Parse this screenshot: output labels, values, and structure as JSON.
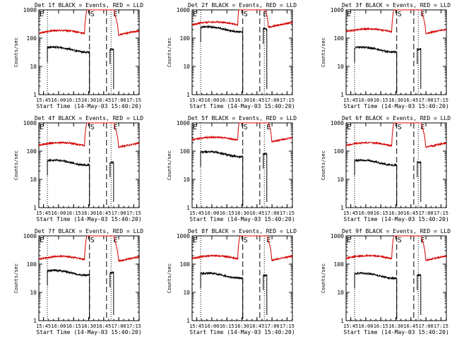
{
  "colors": {
    "events": "#000000",
    "lld": "#d40000",
    "axes": "#000000",
    "background": "#ffffff"
  },
  "common": {
    "ylabel": "Counts/sec",
    "xlabel": "Start Time (14-May-03 15:40:20)",
    "xticks": [
      "15:45",
      "16:00",
      "16:15",
      "16:30",
      "16:45",
      "17:00",
      "17:15"
    ],
    "yticks": [
      "1",
      "10",
      "100",
      "1000"
    ],
    "marker_S": "S",
    "marker_E": "E"
  },
  "chart_data": [
    {
      "type": "line",
      "title": "Det 1f BLACK = Events, RED = LLD",
      "xlabel": "Start Time (14-May-03 15:40:20)",
      "ylabel": "Counts/sec",
      "yscale": "log",
      "ylim": [
        1,
        1000
      ],
      "xlim_min_after_start": [
        0,
        100
      ],
      "dotted_lines_min": [
        8.5,
        72
      ],
      "dashed_lines_min": [
        50.5,
        67.5
      ],
      "S_min": 50.5,
      "E_min": 73.5,
      "series": [
        {
          "name": "Events",
          "level": 40,
          "start_min": 8.5,
          "end_min": 50.5,
          "resume_min": 71,
          "resume_end_min": 74.5
        },
        {
          "name": "LLD",
          "level": 150,
          "start_min": 0,
          "end_min": 100
        }
      ]
    },
    {
      "type": "line",
      "title": "Det 2f BLACK = Events, RED = LLD",
      "xlabel": "Start Time (14-May-03 15:40:20)",
      "ylabel": "Counts/sec",
      "yscale": "log",
      "ylim": [
        1,
        1000
      ],
      "xlim_min_after_start": [
        0,
        100
      ],
      "dotted_lines_min": [
        8.5,
        72
      ],
      "dashed_lines_min": [
        50.5,
        67.5
      ],
      "S_min": 50.5,
      "E_min": 70,
      "series": [
        {
          "name": "Events",
          "level": 210,
          "start_min": 8.5,
          "end_min": 50.5,
          "resume_min": 71,
          "resume_end_min": 74.5
        },
        {
          "name": "LLD",
          "level": 300,
          "start_min": 0,
          "end_min": 100
        }
      ]
    },
    {
      "type": "line",
      "title": "Det 3f BLACK = Events, RED = LLD",
      "xlabel": "Start Time (14-May-03 15:40:20)",
      "ylabel": "Counts/sec",
      "yscale": "log",
      "ylim": [
        1,
        1000
      ],
      "xlim_min_after_start": [
        0,
        100
      ],
      "dotted_lines_min": [
        8.5,
        72
      ],
      "dashed_lines_min": [
        50.5,
        67.5
      ],
      "S_min": 50.5,
      "E_min": 73.5,
      "series": [
        {
          "name": "Events",
          "level": 40,
          "start_min": 8.5,
          "end_min": 50.5,
          "resume_min": 71,
          "resume_end_min": 74.5
        },
        {
          "name": "LLD",
          "level": 170,
          "start_min": 0,
          "end_min": 100
        }
      ]
    },
    {
      "type": "line",
      "title": "Det 4f BLACK = Events, RED = LLD",
      "xlabel": "Start Time (14-May-03 15:40:20)",
      "ylabel": "Counts/sec",
      "yscale": "log",
      "ylim": [
        1,
        1000
      ],
      "xlim_min_after_start": [
        0,
        100
      ],
      "dotted_lines_min": [
        8.5,
        72
      ],
      "dashed_lines_min": [
        50.5,
        67.5
      ],
      "S_min": 50.5,
      "E_min": 73.5,
      "series": [
        {
          "name": "Events",
          "level": 40,
          "start_min": 8.5,
          "end_min": 50.5,
          "resume_min": 71,
          "resume_end_min": 74.5
        },
        {
          "name": "LLD",
          "level": 160,
          "start_min": 0,
          "end_min": 100
        }
      ]
    },
    {
      "type": "line",
      "title": "Det 5f BLACK = Events, RED = LLD",
      "xlabel": "Start Time (14-May-03 15:40:20)",
      "ylabel": "Counts/sec",
      "yscale": "log",
      "ylim": [
        1,
        1000
      ],
      "xlim_min_after_start": [
        0,
        100
      ],
      "dotted_lines_min": [
        8.5,
        72
      ],
      "dashed_lines_min": [
        50.5,
        67.5
      ],
      "S_min": 50.5,
      "E_min": 73.5,
      "series": [
        {
          "name": "Events",
          "level": 80,
          "start_min": 8.5,
          "end_min": 50.5,
          "resume_min": 71,
          "resume_end_min": 74.5
        },
        {
          "name": "LLD",
          "level": 250,
          "start_min": 0,
          "end_min": 100
        }
      ]
    },
    {
      "type": "line",
      "title": "Det 6f BLACK = Events, RED = LLD",
      "xlabel": "Start Time (14-May-03 15:40:20)",
      "ylabel": "Counts/sec",
      "yscale": "log",
      "ylim": [
        1,
        1000
      ],
      "xlim_min_after_start": [
        0,
        100
      ],
      "dotted_lines_min": [
        8.5,
        72
      ],
      "dashed_lines_min": [
        50.5,
        67.5
      ],
      "S_min": 50.5,
      "E_min": 73.5,
      "series": [
        {
          "name": "Events",
          "level": 40,
          "start_min": 8.5,
          "end_min": 50.5,
          "resume_min": 71,
          "resume_end_min": 74.5
        },
        {
          "name": "LLD",
          "level": 160,
          "start_min": 0,
          "end_min": 100
        }
      ]
    },
    {
      "type": "line",
      "title": "Det 7f BLACK = Events, RED = LLD",
      "xlabel": "Start Time (14-May-03 15:40:20)",
      "ylabel": "Counts/sec",
      "yscale": "log",
      "ylim": [
        1,
        1000
      ],
      "xlim_min_after_start": [
        0,
        100
      ],
      "dotted_lines_min": [
        8.5,
        72
      ],
      "dashed_lines_min": [
        50.5,
        67.5
      ],
      "S_min": 50.5,
      "E_min": 73.5,
      "series": [
        {
          "name": "Events",
          "level": 50,
          "start_min": 8.5,
          "end_min": 50.5,
          "resume_min": 71,
          "resume_end_min": 74.5
        },
        {
          "name": "LLD",
          "level": 150,
          "start_min": 0,
          "end_min": 100
        }
      ]
    },
    {
      "type": "line",
      "title": "Det 8f BLACK = Events, RED = LLD",
      "xlabel": "Start Time (14-May-03 15:40:20)",
      "ylabel": "Counts/sec",
      "yscale": "log",
      "ylim": [
        1,
        1000
      ],
      "xlim_min_after_start": [
        0,
        100
      ],
      "dotted_lines_min": [
        8.5,
        72
      ],
      "dashed_lines_min": [
        50.5,
        67.5
      ],
      "S_min": 50.5,
      "E_min": 73.5,
      "series": [
        {
          "name": "Events",
          "level": 40,
          "start_min": 8.5,
          "end_min": 50.5,
          "resume_min": 71,
          "resume_end_min": 74.5
        },
        {
          "name": "LLD",
          "level": 160,
          "start_min": 0,
          "end_min": 100
        }
      ]
    },
    {
      "type": "line",
      "title": "Det 9f BLACK = Events, RED = LLD",
      "xlabel": "Start Time (14-May-03 15:40:20)",
      "ylabel": "Counts/sec",
      "yscale": "log",
      "ylim": [
        1,
        1000
      ],
      "xlim_min_after_start": [
        0,
        100
      ],
      "dotted_lines_min": [
        8.5,
        72
      ],
      "dashed_lines_min": [
        50.5,
        67.5
      ],
      "S_min": 50.5,
      "E_min": 73.5,
      "series": [
        {
          "name": "Events",
          "level": 40,
          "start_min": 8.5,
          "end_min": 50.5,
          "resume_min": 71,
          "resume_end_min": 74.5
        },
        {
          "name": "LLD",
          "level": 160,
          "start_min": 0,
          "end_min": 100
        }
      ]
    }
  ]
}
